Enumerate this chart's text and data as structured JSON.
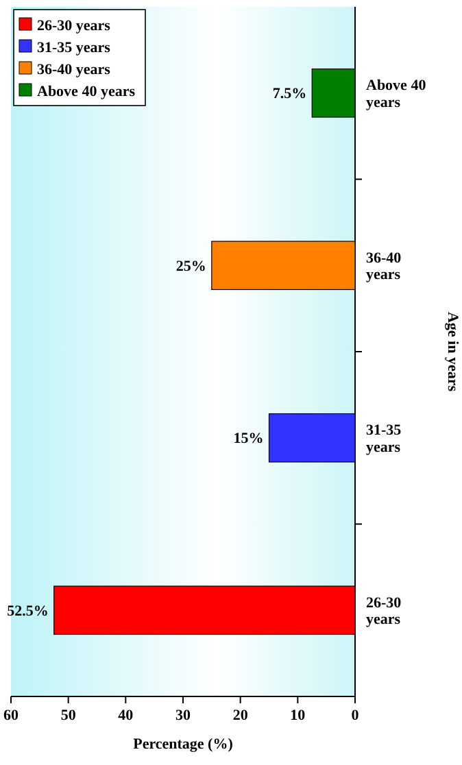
{
  "chart_data": {
    "type": "bar",
    "orientation": "horizontal",
    "stacked": true,
    "xlabel": "Percentage (%)",
    "ylabel": "Age in years",
    "categories": [
      "Above 40 years",
      "36-40 years",
      "31-35 years",
      "26-30 years"
    ],
    "series": [
      {
        "name": "26-30 years",
        "color": "#ff0000",
        "values": [
          null,
          null,
          null,
          52.5
        ],
        "value_labels": [
          null,
          null,
          null,
          "52.5%"
        ]
      },
      {
        "name": "31-35 years",
        "color": "#3333ff",
        "values": [
          null,
          null,
          15,
          null
        ],
        "value_labels": [
          null,
          null,
          "15%",
          null
        ]
      },
      {
        "name": "36-40 years",
        "color": "#ff8000",
        "values": [
          null,
          25,
          null,
          null
        ],
        "value_labels": [
          null,
          "25%",
          null,
          null
        ]
      },
      {
        "name": "Above 40 years",
        "color": "#008000",
        "values": [
          7.5,
          null,
          null,
          null
        ],
        "value_labels": [
          "7.5%",
          null,
          null,
          null
        ]
      }
    ],
    "xlim": [
      60,
      0
    ],
    "xticks": [
      60,
      50,
      40,
      30,
      20,
      10,
      0
    ],
    "legend": "top left"
  }
}
